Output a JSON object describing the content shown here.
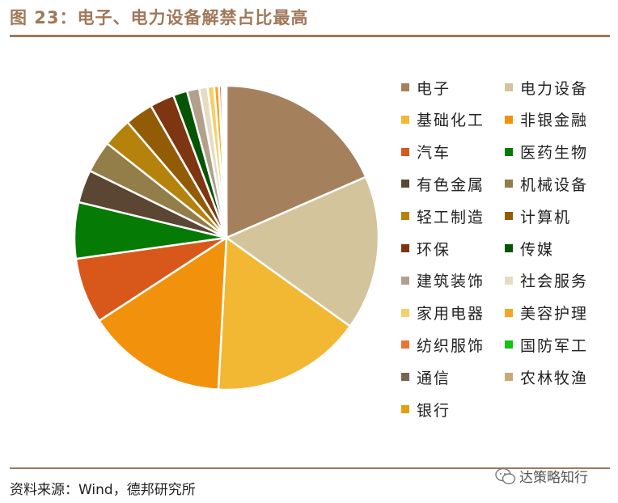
{
  "header": {
    "title": "图 23：电子、电力设备解禁占比最高"
  },
  "footer": {
    "source": "资料来源：Wind，德邦研究所",
    "watermark": "达策略知行"
  },
  "chart_data": {
    "type": "pie",
    "title": "",
    "start_angle_deg": 90,
    "direction": "clockwise",
    "slices": [
      {
        "label": "电子",
        "value": 18.5,
        "color": "#a4805c"
      },
      {
        "label": "电力设备",
        "value": 16.5,
        "color": "#d4c49c"
      },
      {
        "label": "基础化工",
        "value": 16.0,
        "color": "#f2b733"
      },
      {
        "label": "非银金融",
        "value": 15.0,
        "color": "#f2920c"
      },
      {
        "label": "汽车",
        "value": 7.0,
        "color": "#d8581c"
      },
      {
        "label": "医药生物",
        "value": 6.0,
        "color": "#057a05"
      },
      {
        "label": "有色金属",
        "value": 3.5,
        "color": "#5a4632"
      },
      {
        "label": "机械设备",
        "value": 3.4,
        "color": "#937d48"
      },
      {
        "label": "轻工制造",
        "value": 3.1,
        "color": "#b5820c"
      },
      {
        "label": "计算机",
        "value": 3.0,
        "color": "#925c06"
      },
      {
        "label": "环保",
        "value": 2.6,
        "color": "#7e3512"
      },
      {
        "label": "传媒",
        "value": 1.5,
        "color": "#055505"
      },
      {
        "label": "建筑装饰",
        "value": 1.3,
        "color": "#b2a08c"
      },
      {
        "label": "社会服务",
        "value": 0.9,
        "color": "#e6dcc4"
      },
      {
        "label": "家用电器",
        "value": 0.7,
        "color": "#f6cf6c"
      },
      {
        "label": "美容护理",
        "value": 0.5,
        "color": "#f5a623"
      },
      {
        "label": "纺织服饰",
        "value": 0.3,
        "color": "#e8753a"
      },
      {
        "label": "国防军工",
        "value": 0.2,
        "color": "#13c213"
      },
      {
        "label": "通信",
        "value": 0.1,
        "color": "#7b6450"
      },
      {
        "label": "农林牧渔",
        "value": 0.1,
        "color": "#c8aa78"
      },
      {
        "label": "银行",
        "value": 0.1,
        "color": "#e0a010"
      }
    ],
    "legend_position": "right"
  }
}
